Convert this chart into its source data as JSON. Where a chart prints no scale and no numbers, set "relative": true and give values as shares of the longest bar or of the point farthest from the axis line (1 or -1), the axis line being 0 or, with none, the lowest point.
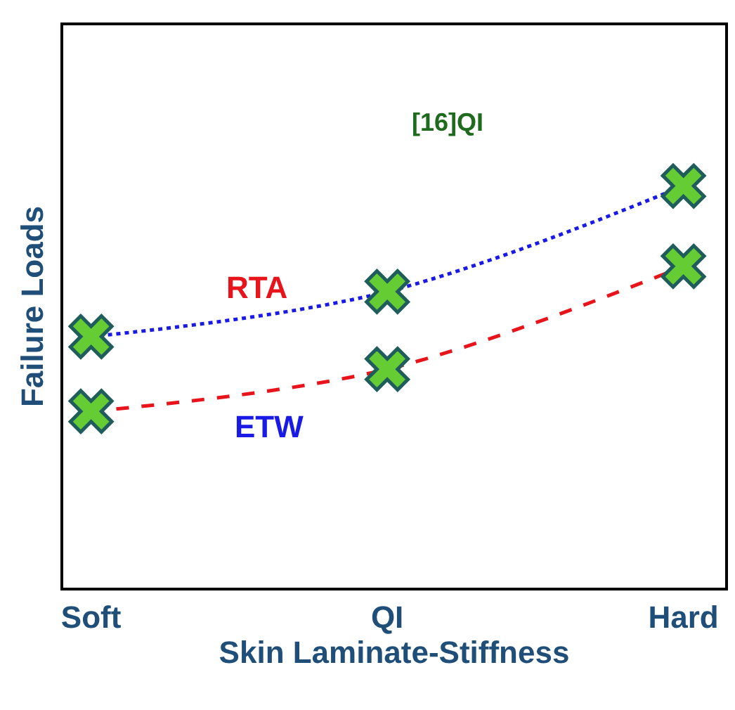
{
  "chart_data": {
    "type": "line",
    "relative": true,
    "xlabel": "Skin Laminate-Stiffness",
    "ylabel": "Failure Loads",
    "categories": [
      "Soft",
      "QI",
      "Hard"
    ],
    "series": [
      {
        "color": "#1a1ae6",
        "line_style": "dotted",
        "values": [
          0.625,
          0.737,
          1
        ]
      },
      {
        "color": "#e8141b",
        "line_style": "dashed",
        "values": [
          0.439,
          0.544,
          0.8
        ]
      }
    ],
    "marker": "cross",
    "annotations": [
      "[16]QI",
      "RTA",
      "ETW"
    ]
  }
}
